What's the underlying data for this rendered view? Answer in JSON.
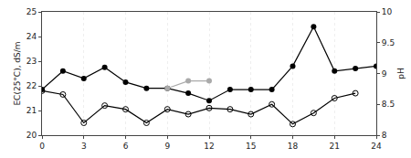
{
  "chart_data": {
    "type": "line",
    "x": [
      0,
      1.5,
      3,
      4.5,
      6,
      7.5,
      9,
      10.5,
      12,
      13.5,
      15,
      16.5,
      18,
      19.5,
      21,
      22.5,
      24
    ],
    "series": [
      {
        "color": "#000000",
        "marker": "circle",
        "values": [
          21.85,
          22.6,
          22.3,
          22.75,
          22.15,
          21.9,
          21.9,
          21.7,
          21.4,
          21.85,
          21.85,
          21.85,
          22.8,
          24.4,
          22.6,
          22.7,
          22.8
        ]
      },
      {
        "color": "#000000",
        "marker": "circle-open",
        "values": [
          21.8,
          21.65,
          20.5,
          21.2,
          21.05,
          20.5,
          21.05,
          20.85,
          21.1,
          21.05,
          20.85,
          21.25,
          20.45,
          20.9,
          21.5,
          21.7,
          null
        ]
      },
      {
        "color": "#aaaaaa",
        "marker": "circle",
        "values": [
          null,
          null,
          null,
          null,
          null,
          null,
          21.9,
          22.2,
          22.2,
          null,
          null,
          null,
          null,
          null,
          null,
          null,
          null
        ]
      }
    ],
    "ylabel": "EC(25°C), dS/m",
    "y2label": "pH",
    "xlim": [
      0,
      24
    ],
    "xticks": [
      0,
      3,
      6,
      9,
      12,
      15,
      18,
      21,
      24
    ],
    "ylim": [
      20,
      25
    ],
    "yticks": [
      20,
      21,
      22,
      23,
      24,
      25
    ],
    "y2lim": [
      8.0,
      10.0
    ],
    "y2ticks": [
      8,
      {
        "value": 8.5,
        "label": "8.5"
      },
      9,
      {
        "value": 9.5,
        "label": "9.5"
      },
      10
    ],
    "grid": "x"
  }
}
